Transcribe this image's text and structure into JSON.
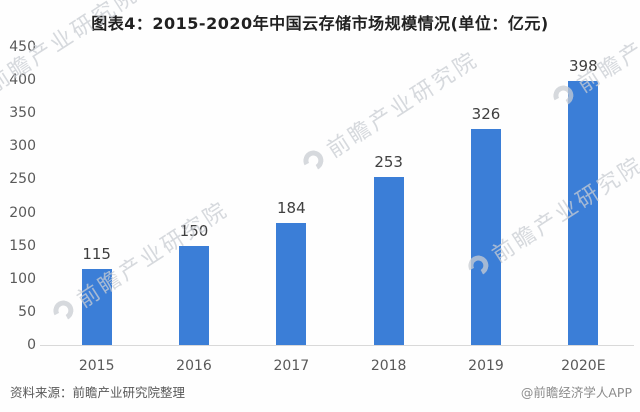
{
  "chart_data": {
    "type": "bar",
    "title": "图表4：2015-2020年中国云存储市场规模情况(单位：亿元)",
    "categories": [
      "2015",
      "2016",
      "2017",
      "2018",
      "2019",
      "2020E"
    ],
    "values": [
      115,
      150,
      184,
      253,
      326,
      398
    ],
    "xlabel": "",
    "ylabel": "",
    "ylim": [
      0,
      450
    ],
    "ytick_step": 50,
    "grid": false,
    "legend": false,
    "bar_color": "#3b7ed7",
    "axis_line_color": "#d9d9d9",
    "value_label_color": "#3f3f3f",
    "tick_label_color": "#595959"
  },
  "watermark": {
    "text": "前瞻产业研究院"
  },
  "footer": {
    "source": "资料来源：前瞻产业研究院整理",
    "brand": "@前瞻经济学人APP"
  }
}
